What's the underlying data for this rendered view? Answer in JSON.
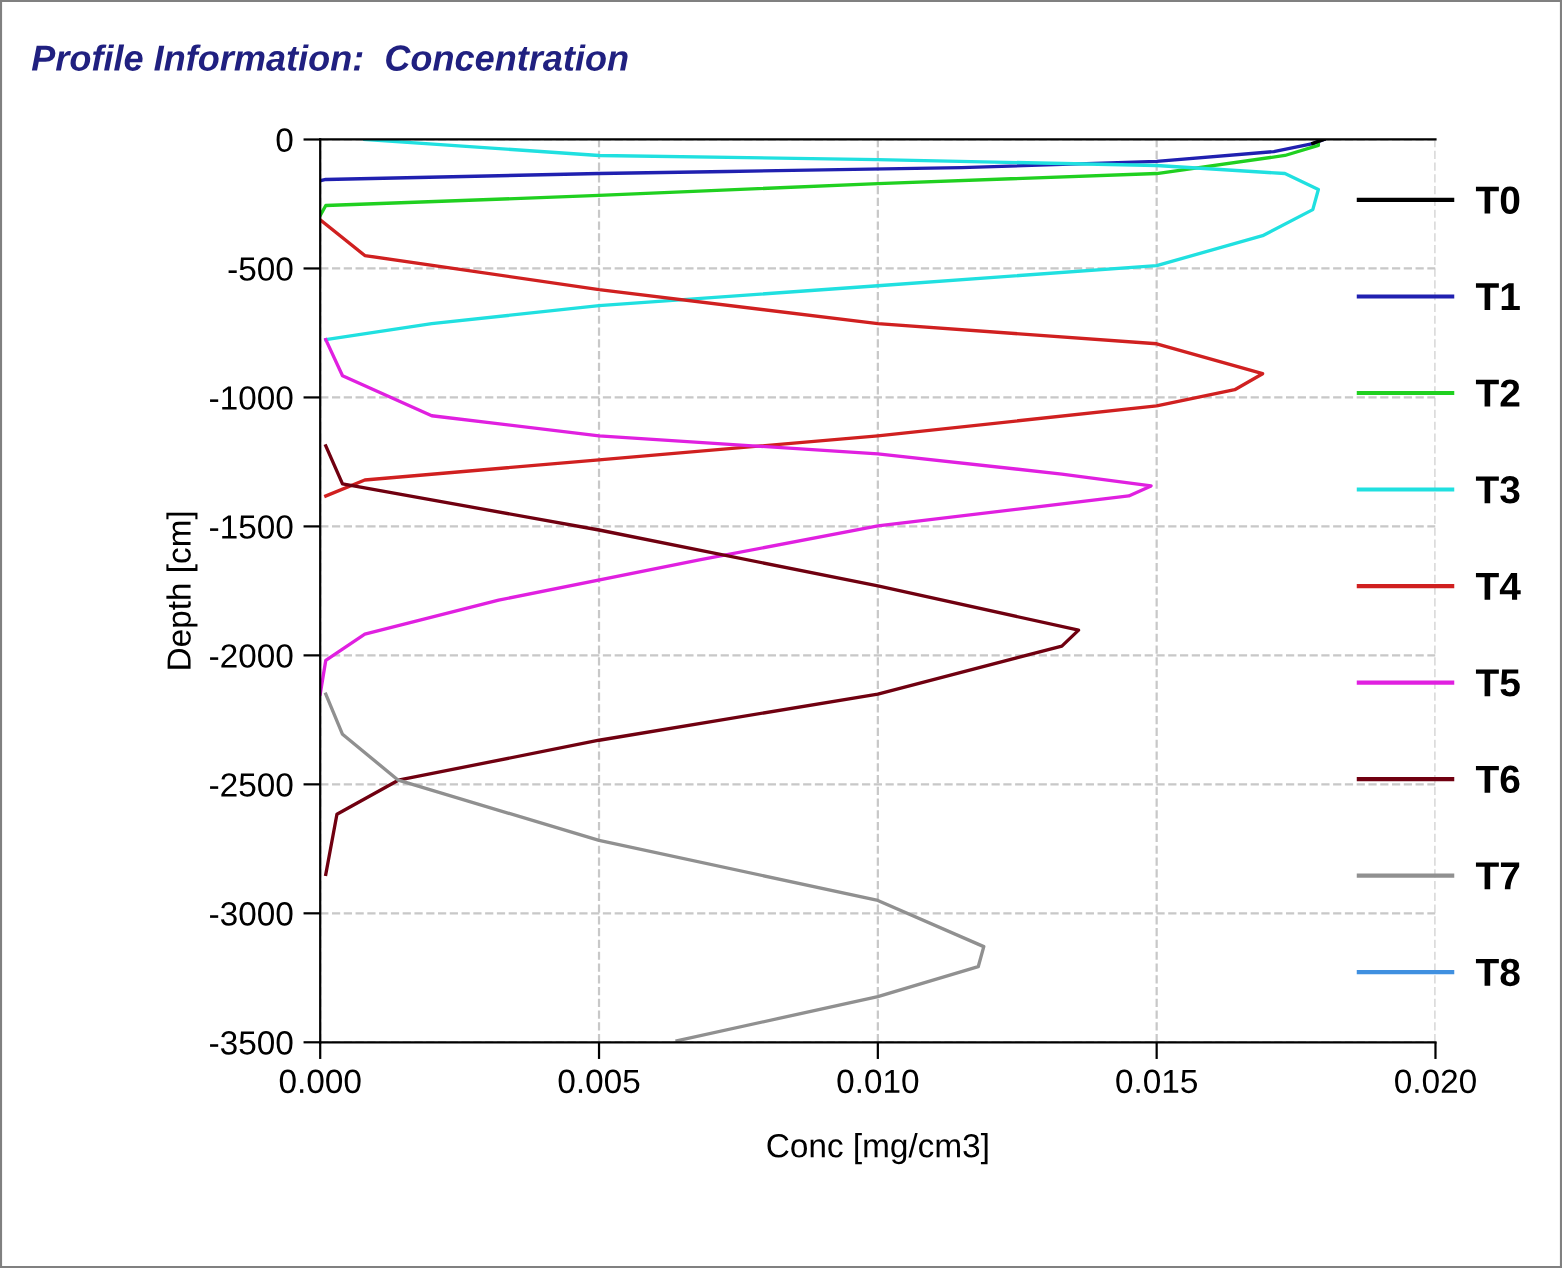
{
  "chart_data": {
    "type": "line",
    "title": "Profile Information:  Concentration",
    "xlabel": "Conc [mg/cm3]",
    "ylabel": "Depth [cm]",
    "xlim": [
      0,
      0.02
    ],
    "xticks": [
      {
        "value": 0,
        "label": "0.000"
      },
      {
        "value": 0.005,
        "label": "0.005"
      },
      {
        "value": 0.01,
        "label": "0.010"
      },
      {
        "value": 0.015,
        "label": "0.015"
      },
      {
        "value": 0.02,
        "label": "0.020"
      }
    ],
    "ylim": [
      -3500,
      0
    ],
    "yticks": [
      -3500,
      -3000,
      -2500,
      -2000,
      -1500,
      -1000,
      -500,
      0
    ],
    "grid": true,
    "legend": "right",
    "series": [
      {
        "name": "T0",
        "color": "#000000",
        "x": [
          0.018,
          0.0178
        ],
        "values": [
          0,
          -15
        ]
      },
      {
        "name": "T1",
        "color": "#2020b0",
        "x": [
          0.018,
          0.0178,
          0.0171,
          0.015,
          0.0115,
          0.0073,
          0.005,
          0.0001,
          0
        ],
        "values": [
          0,
          -16,
          -47,
          -85,
          -109,
          -124,
          -132,
          -155,
          -160
        ]
      },
      {
        "name": "T2",
        "color": "#20d020",
        "x": [
          0.0179,
          0.0179,
          0.0173,
          0.015,
          0.01,
          0.005,
          0.0001,
          0
        ],
        "values": [
          0,
          -23,
          -62,
          -132,
          -171,
          -217,
          -256,
          -295
        ]
      },
      {
        "name": "T3",
        "color": "#20e0e0",
        "x": [
          0.0008,
          0.005,
          0.01,
          0.015,
          0.0173,
          0.0179,
          0.0178,
          0.0169,
          0.015,
          0.01,
          0.005,
          0.002,
          0.0001
        ],
        "values": [
          0,
          -62,
          -78,
          -101,
          -132,
          -194,
          -272,
          -373,
          -489,
          -567,
          -644,
          -714,
          -776
        ]
      },
      {
        "name": "T4",
        "color": "#d02020",
        "x": [
          0,
          0.0008,
          0.005,
          0.01,
          0.015,
          0.0169,
          0.0164,
          0.015,
          0.01,
          0.005,
          0.0008,
          0.0001
        ],
        "values": [
          -311,
          -450,
          -582,
          -714,
          -792,
          -908,
          -970,
          -1033,
          -1149,
          -1242,
          -1320,
          -1382
        ]
      },
      {
        "name": "T5",
        "color": "#e020e0",
        "x": [
          0.0001,
          0.0004,
          0.002,
          0.005,
          0.01,
          0.0133,
          0.0149,
          0.0145,
          0.01,
          0.0068,
          0.0032,
          0.0008,
          0.0001,
          0
        ],
        "values": [
          -776,
          -916,
          -1071,
          -1149,
          -1219,
          -1297,
          -1343,
          -1382,
          -1498,
          -1630,
          -1786,
          -1918,
          -2019,
          -2150
        ]
      },
      {
        "name": "T6",
        "color": "#700010",
        "x": [
          0.0001,
          0.0004,
          0.005,
          0.01,
          0.0136,
          0.0133,
          0.01,
          0.005,
          0.0014,
          0.0003,
          0.0001
        ],
        "values": [
          -1188,
          -1335,
          -1514,
          -1731,
          -1902,
          -1964,
          -2150,
          -2329,
          -2484,
          -2616,
          -2849
        ]
      },
      {
        "name": "T7",
        "color": "#909090",
        "x": [
          0.0001,
          0.0004,
          0.0014,
          0.005,
          0.01,
          0.0119,
          0.0118,
          0.01,
          0.0064
        ],
        "values": [
          -2150,
          -2306,
          -2484,
          -2717,
          -2950,
          -3129,
          -3207,
          -3323,
          -3494
        ]
      },
      {
        "name": "T8",
        "color": "#4090e0"
      }
    ]
  }
}
